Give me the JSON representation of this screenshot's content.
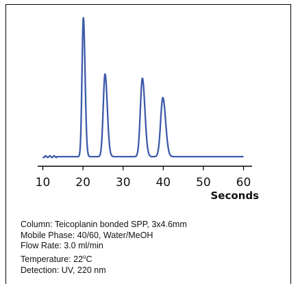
{
  "chart_data": {
    "type": "line",
    "title": "",
    "xlabel": "Seconds",
    "ylabel": "",
    "xlim": [
      10,
      60
    ],
    "xticks": [
      "10",
      "20",
      "30",
      "40",
      "50",
      "60"
    ],
    "grid": false,
    "legend": "none",
    "series": [
      {
        "color": "#3d5aa9",
        "peaks": [
          {
            "x": 20.1,
            "height": 1.0,
            "width": 0.34
          },
          {
            "x": 25.5,
            "height": 0.595,
            "width": 0.45
          },
          {
            "x": 34.8,
            "height": 0.565,
            "width": 0.5
          },
          {
            "x": 39.9,
            "height": 0.425,
            "width": 0.55
          }
        ],
        "baseline": 0.0
      }
    ]
  },
  "conditions": {
    "column": "Column: Teicoplanin bonded SPP, 3x4.6mm",
    "mobile_phase": "Mobile Phase: 40/60, Water/MeOH",
    "flow_rate": "Flow Rate: 3.0 ml/min",
    "temperature_prefix": "Temperature: 22",
    "temperature_sup": "o",
    "temperature_suffix": "C",
    "detection": "Detection: UV, 220 nm"
  }
}
